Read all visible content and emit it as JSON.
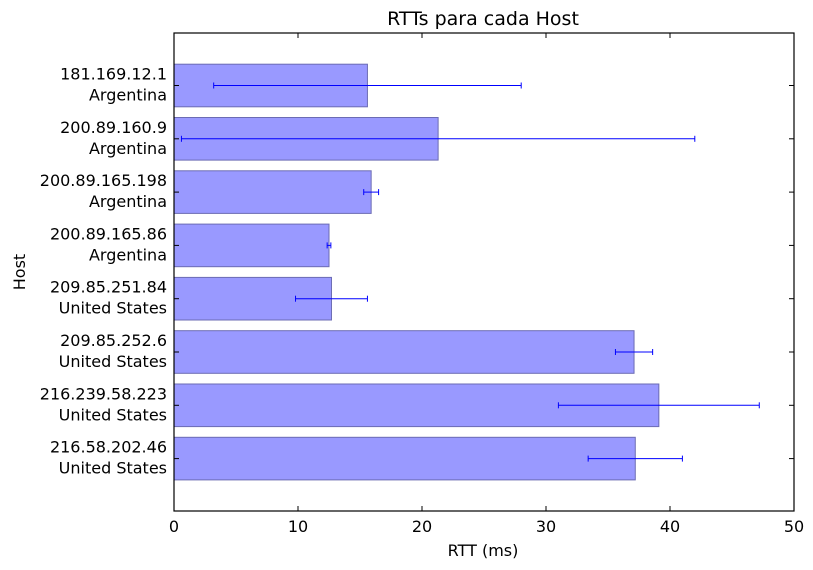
{
  "chart_data": {
    "type": "bar",
    "orientation": "horizontal",
    "title": "RTTs para cada Host",
    "xlabel": "RTT (ms)",
    "ylabel": "Host",
    "xlim": [
      0,
      50
    ],
    "xticks": [
      "0",
      "10",
      "20",
      "30",
      "40",
      "50"
    ],
    "grid": false,
    "categories": [
      {
        "host": "181.169.12.1",
        "country": "Argentina"
      },
      {
        "host": "200.89.160.9",
        "country": "Argentina"
      },
      {
        "host": "200.89.165.198",
        "country": "Argentina"
      },
      {
        "host": "200.89.165.86",
        "country": "Argentina"
      },
      {
        "host": "209.85.251.84",
        "country": "United States"
      },
      {
        "host": "209.85.252.6",
        "country": "United States"
      },
      {
        "host": "216.239.58.223",
        "country": "United States"
      },
      {
        "host": "216.58.202.46",
        "country": "United States"
      }
    ],
    "values": [
      15.6,
      21.3,
      15.9,
      12.5,
      12.7,
      37.1,
      39.1,
      37.2
    ],
    "errors": [
      12.4,
      20.7,
      0.6,
      0.15,
      2.9,
      1.5,
      8.1,
      3.8
    ],
    "colors": {
      "bar": "#9999ff",
      "bar_edge": "#6b6bb3",
      "error": "#0000ff"
    }
  }
}
